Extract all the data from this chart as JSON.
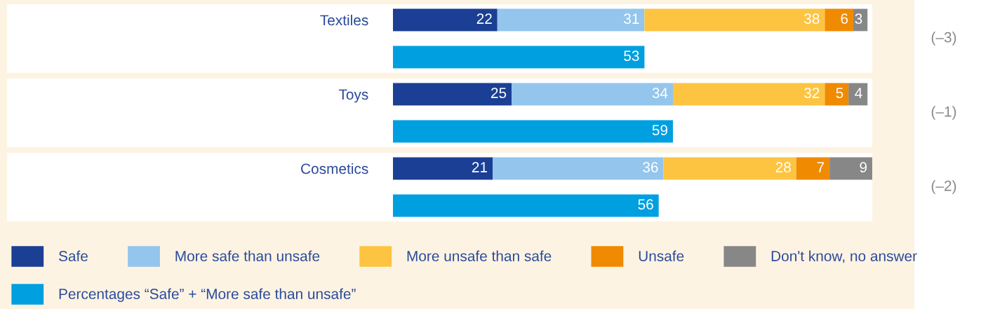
{
  "chart_data": {
    "type": "bar",
    "orientation": "horizontal",
    "stacked": true,
    "data_labels": true,
    "legend": "bottom",
    "tick_labels": "y",
    "grid": false,
    "categories": [
      "Textiles",
      null,
      "Toys",
      null,
      "Cosmetics",
      null
    ],
    "xlim": [
      0,
      101
    ],
    "series": [
      {
        "name": "Safe",
        "color": "#1a3f94",
        "values": [
          22,
          null,
          25,
          null,
          21,
          null
        ]
      },
      {
        "name": "More safe than unsafe",
        "color": "#94c5ec",
        "values": [
          31,
          null,
          34,
          null,
          36,
          null
        ]
      },
      {
        "name": "More unsafe than safe",
        "color": "#fdc441",
        "values": [
          38,
          null,
          32,
          null,
          28,
          null
        ]
      },
      {
        "name": "Unsafe",
        "color": "#f08a00",
        "values": [
          6,
          null,
          5,
          null,
          7,
          null
        ]
      },
      {
        "name": "Don't know, no answer",
        "color": "#878787",
        "values": [
          3,
          null,
          4,
          null,
          9,
          null
        ]
      },
      {
        "name": "Percentages “Safe” + “More safe than unsafe”",
        "color": "#009fe0",
        "values": [
          null,
          53,
          null,
          59,
          null,
          56
        ]
      }
    ],
    "annotations": [
      "(–3)",
      "(–1)",
      "(–2)"
    ]
  }
}
